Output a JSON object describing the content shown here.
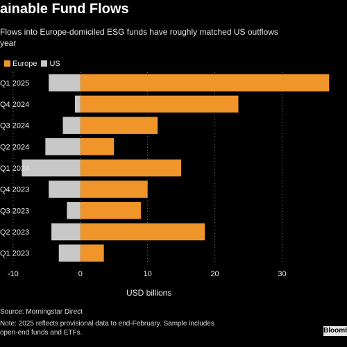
{
  "title": "ainable Fund Flows",
  "subtitle": "Flows into Europe-domiciled ESG funds have roughly matched US outflows\nyear",
  "source": "Source: Morningstar Direct",
  "note": "Note: 2025 reflects provisional data to end-February. Sample includes\nopen-end funds and ETFs.",
  "logo": "Bloomberg",
  "colors": {
    "europe": "#f0952a",
    "us": "#c8c8c8",
    "grid": "#777777",
    "background": "#000000"
  },
  "chart_data": {
    "type": "bar",
    "orientation": "horizontal",
    "stacked": "diverging",
    "categories": [
      "Q1 2025",
      "Q4 2024",
      "Q3 2024",
      "Q2 2024",
      "Q1 2024",
      "Q4 2023",
      "Q3 2023",
      "Q2 2023",
      "Q1 2023"
    ],
    "series": [
      {
        "name": "Europe",
        "values": [
          37,
          23.5,
          11.5,
          5,
          15,
          10,
          9,
          18.5,
          3.5
        ]
      },
      {
        "name": "US",
        "values": [
          -4.7,
          -0.8,
          -2.6,
          -5.2,
          -8.7,
          -4.7,
          -2,
          -4.3,
          -3.2
        ]
      }
    ],
    "xlabel": "USD billions",
    "ylabel": "",
    "xticks": [
      -10,
      0,
      10,
      20,
      30
    ],
    "xlim": [
      -10.5,
      38
    ],
    "grid": true,
    "legend": "top-left"
  }
}
